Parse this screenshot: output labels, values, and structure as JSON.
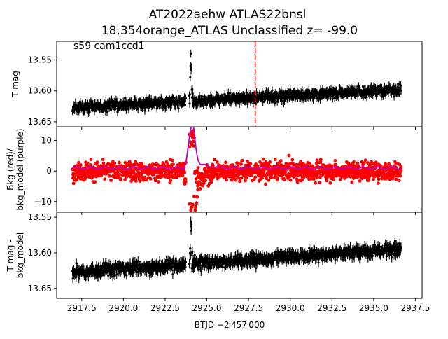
{
  "chart_data": {
    "type": "scatter",
    "title_line1": "AT2022aehw  ATLAS22bnsl",
    "title_line2": "18.354orange_ATLAS Unclassified z= -99.0",
    "xlabel": "BTJD −2 457 000",
    "x_range": [
      2916.0,
      2937.9
    ],
    "x_ticks": [
      2917.5,
      2920.0,
      2922.5,
      2925.0,
      2927.5,
      2930.0,
      2932.5,
      2935.0,
      2937.5
    ],
    "x_tick_labels": [
      "2917.5",
      "2920.0",
      "2922.5",
      "2925.0",
      "2927.5",
      "2930.0",
      "2932.5",
      "2935.0",
      "2937.5"
    ],
    "data_x_span": [
      2916.95,
      2936.65
    ],
    "gap_x": [
      2923.75,
      2923.95
    ],
    "panels": [
      {
        "id": "tmag",
        "ylabel": "T mag",
        "annotation": "s59 cam1ccd1",
        "y_range": [
          13.52,
          13.658
        ],
        "y_inverted": true,
        "y_ticks": [
          13.55,
          13.6,
          13.65
        ],
        "y_tick_labels": [
          "13.55",
          "13.60",
          "13.65"
        ],
        "vline_x": 2927.9,
        "vline_color": "#ff0000",
        "series": [
          {
            "name": "T mag",
            "color": "#000000",
            "baseline_start": 13.627,
            "baseline_end": 13.598,
            "spread": 0.013,
            "spike_x": 2924.05,
            "spike_y": 13.535
          }
        ]
      },
      {
        "id": "bkg",
        "ylabel": "Bkg (red)/\nbkg_model (purple)",
        "y_range": [
          -13.5,
          14.5
        ],
        "y_inverted": false,
        "y_ticks": [
          -10,
          0,
          10
        ],
        "y_tick_labels": [
          "−10",
          "0",
          "10"
        ],
        "series": [
          {
            "name": "Bkg",
            "color": "#ff0000",
            "baseline": 0.0,
            "spread": 3.0,
            "peak_x": 2924.1,
            "peak_y": 14.0
          },
          {
            "name": "bkg_model",
            "color": "#bf00bf",
            "baseline": 1.0,
            "peak_x": 2924.1,
            "peak_y": 14.2
          }
        ]
      },
      {
        "id": "tmag_minus_bkg",
        "ylabel": "T mag -\nbkg_model",
        "y_range": [
          13.543,
          13.664
        ],
        "y_inverted": true,
        "y_ticks": [
          13.55,
          13.6,
          13.65
        ],
        "y_tick_labels": [
          "13.55",
          "13.60",
          "13.65"
        ],
        "series": [
          {
            "name": "T mag - bkg_model",
            "color": "#000000",
            "baseline_start": 13.628,
            "baseline_end": 13.595,
            "spread": 0.013,
            "spike_x": 2924.05,
            "spike_y": 13.552
          }
        ]
      }
    ]
  }
}
